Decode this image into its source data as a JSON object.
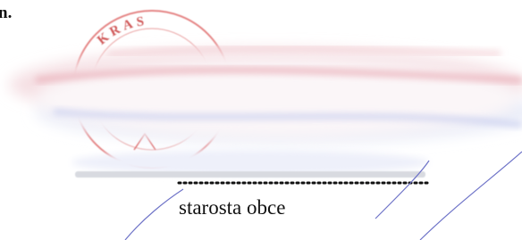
{
  "header": {
    "fragment": "n."
  },
  "stamp": {
    "text": "KRAS"
  },
  "signature": {
    "title": "starosta obce"
  }
}
